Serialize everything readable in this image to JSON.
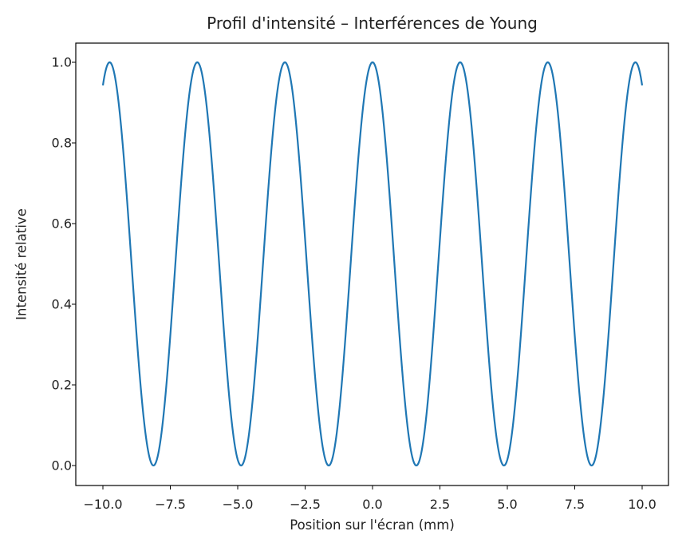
{
  "chart_data": {
    "type": "line",
    "title": "Profil d'intensité – Interférences de Young",
    "xlabel": "Position sur l'écran (mm)",
    "ylabel": "Intensité relative",
    "xlim": [
      -11.0,
      11.0
    ],
    "ylim": [
      -0.05,
      1.05
    ],
    "xticks": [
      -10.0,
      -7.5,
      -5.0,
      -2.5,
      0.0,
      2.5,
      5.0,
      7.5,
      10.0
    ],
    "xtick_labels": [
      "−10.0",
      "−7.5",
      "−5.0",
      "−2.5",
      "0.0",
      "2.5",
      "5.0",
      "7.5",
      "10.0"
    ],
    "yticks": [
      0.0,
      0.2,
      0.4,
      0.6,
      0.8,
      1.0
    ],
    "ytick_labels": [
      "0.0",
      "0.2",
      "0.4",
      "0.6",
      "0.8",
      "1.0"
    ],
    "grid": false,
    "legend": null,
    "series": [
      {
        "name": "Intensité",
        "color": "#1f77b4",
        "function": "cos^2(pi * x / 3.25)",
        "fringe_spacing_mm": 3.25,
        "x_range": [
          -10.0,
          10.0
        ],
        "maxima_x": [
          -9.75,
          -6.5,
          -3.25,
          0.0,
          3.25,
          6.5,
          9.75
        ],
        "minima_x": [
          -8.125,
          -4.875,
          -1.625,
          1.625,
          4.875,
          8.125
        ],
        "endpoints": {
          "x_start": -10.0,
          "y_start": 0.94,
          "x_end": 10.0,
          "y_end": 0.94
        }
      }
    ]
  }
}
